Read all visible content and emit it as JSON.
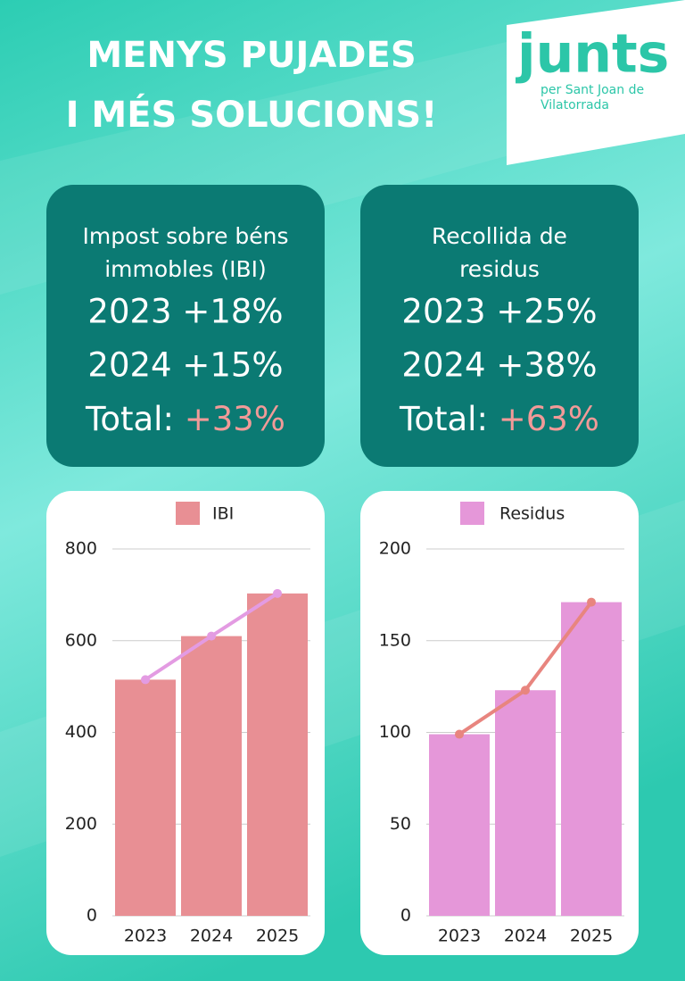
{
  "header": {
    "title_lines": [
      "MENYS PUJADES",
      "I MÉS SOLUCIONS!"
    ]
  },
  "logo": {
    "name": "junts",
    "subtitle_lines": [
      "per Sant Joan de",
      "Vilatorrada"
    ]
  },
  "boxes": [
    {
      "title_lines": [
        "Impost sobre béns",
        "immobles (IBI)"
      ],
      "rows": [
        "2023 +18%",
        "2024 +15%"
      ],
      "total_label": "Total:",
      "total_value": "+33%"
    },
    {
      "title_lines": [
        "Recollida de",
        "residus"
      ],
      "rows": [
        "2023 +25%",
        "2024 +38%"
      ],
      "total_label": "Total:",
      "total_value": "+63%"
    }
  ],
  "chart_data": [
    {
      "type": "bar",
      "categories": [
        "2023",
        "2024",
        "2025"
      ],
      "series": [
        {
          "name": "IBI",
          "color": "#e88f94",
          "values": [
            515,
            610,
            703
          ]
        }
      ],
      "line_color": "#e39be2",
      "ylim": [
        0,
        800
      ],
      "yticks": [
        0,
        200,
        400,
        600,
        800
      ],
      "grid": true
    },
    {
      "type": "bar",
      "categories": [
        "2023",
        "2024",
        "2025"
      ],
      "series": [
        {
          "name": "Residus",
          "color": "#e597d9",
          "values": [
            99,
            123,
            171
          ]
        }
      ],
      "line_color": "#e8857f",
      "ylim": [
        0,
        200
      ],
      "yticks": [
        0,
        50,
        100,
        150,
        200
      ],
      "grid": true
    }
  ]
}
